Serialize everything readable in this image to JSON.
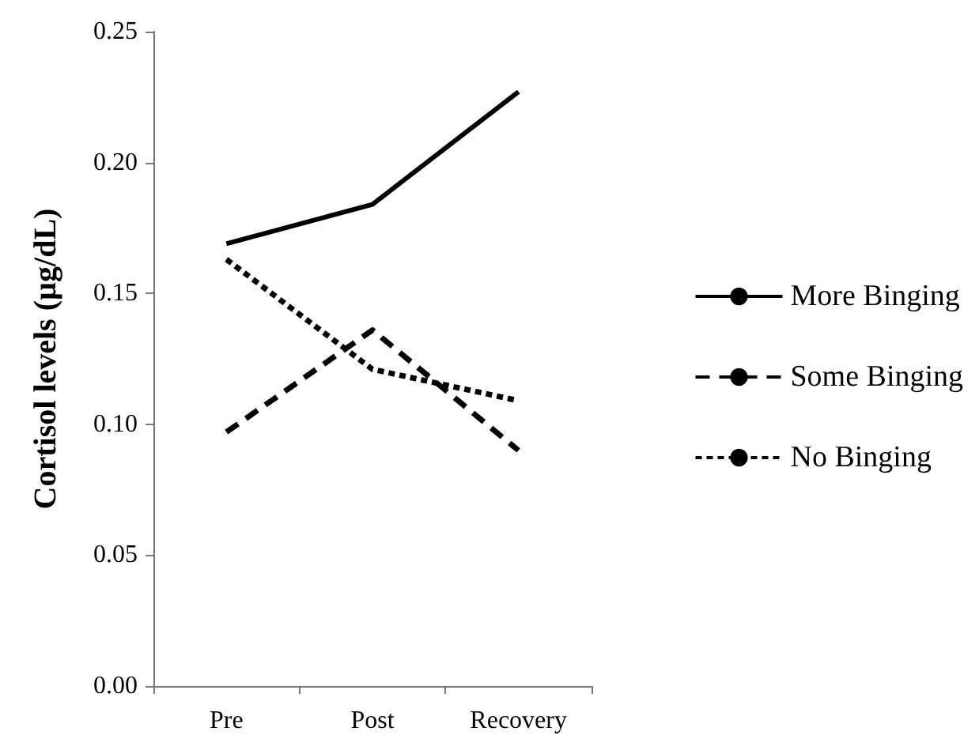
{
  "chart_data": {
    "type": "line",
    "ylabel": "Cortisol levels (µg/dL)",
    "categories": [
      "Pre",
      "Post",
      "Recovery"
    ],
    "series": [
      {
        "name": "More Binging",
        "color": "#000000",
        "line_style": "solid",
        "values": [
          0.169,
          0.184,
          0.227
        ]
      },
      {
        "name": "Some Binging",
        "color": "#000000",
        "line_style": "dashed",
        "values": [
          0.097,
          0.136,
          0.09
        ]
      },
      {
        "name": "No Binging",
        "color": "#000000",
        "line_style": "dotted",
        "values": [
          0.163,
          0.121,
          0.109
        ]
      }
    ],
    "ylim": [
      0,
      0.25
    ],
    "yticks": [
      {
        "value": 0,
        "label": "0.00"
      },
      {
        "value": 0.05,
        "label": "0.05"
      },
      {
        "value": 0.1,
        "label": "0.10"
      },
      {
        "value": 0.15,
        "label": "0.15"
      },
      {
        "value": 0.2,
        "label": "0.20"
      },
      {
        "value": 0.25,
        "label": "0.25"
      }
    ],
    "grid": false,
    "legend": "right",
    "marker": "none"
  }
}
